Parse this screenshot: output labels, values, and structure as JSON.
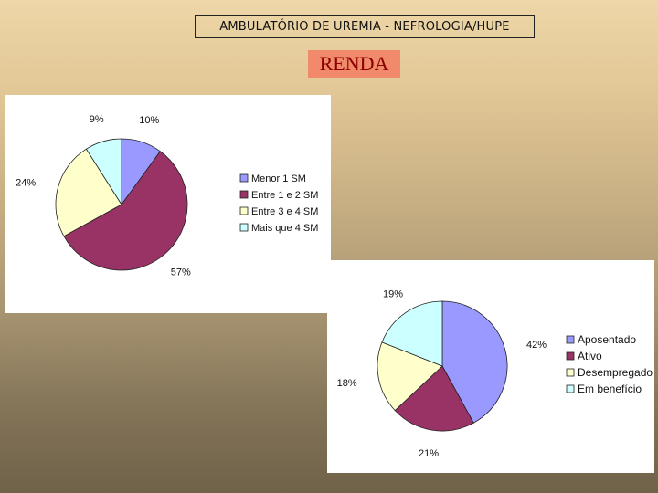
{
  "header": {
    "title": "AMBULATÓRIO DE UREMIA - NEFROLOGIA/HUPE"
  },
  "subtitle": {
    "label": "RENDA"
  },
  "chart_data": [
    {
      "type": "pie",
      "labels": [
        "Menor 1 SM",
        "Entre 1 e 2 SM",
        "Entre 3 e 4 SM",
        "Mais que 4 SM"
      ],
      "values": [
        10,
        57,
        24,
        9
      ],
      "value_labels": [
        "10%",
        "57%",
        "24%",
        "9%"
      ],
      "colors": [
        "#9999ff",
        "#993366",
        "#ffffcc",
        "#ccffff"
      ],
      "legend_position": "right"
    },
    {
      "type": "pie",
      "labels": [
        "Aposentado",
        "Ativo",
        "Desempregado",
        "Em benefício"
      ],
      "values": [
        42,
        21,
        18,
        19
      ],
      "value_labels": [
        "42%",
        "21%",
        "18%",
        "19%"
      ],
      "colors": [
        "#9999ff",
        "#993366",
        "#ffffcc",
        "#ccffff"
      ],
      "legend_position": "right"
    }
  ]
}
